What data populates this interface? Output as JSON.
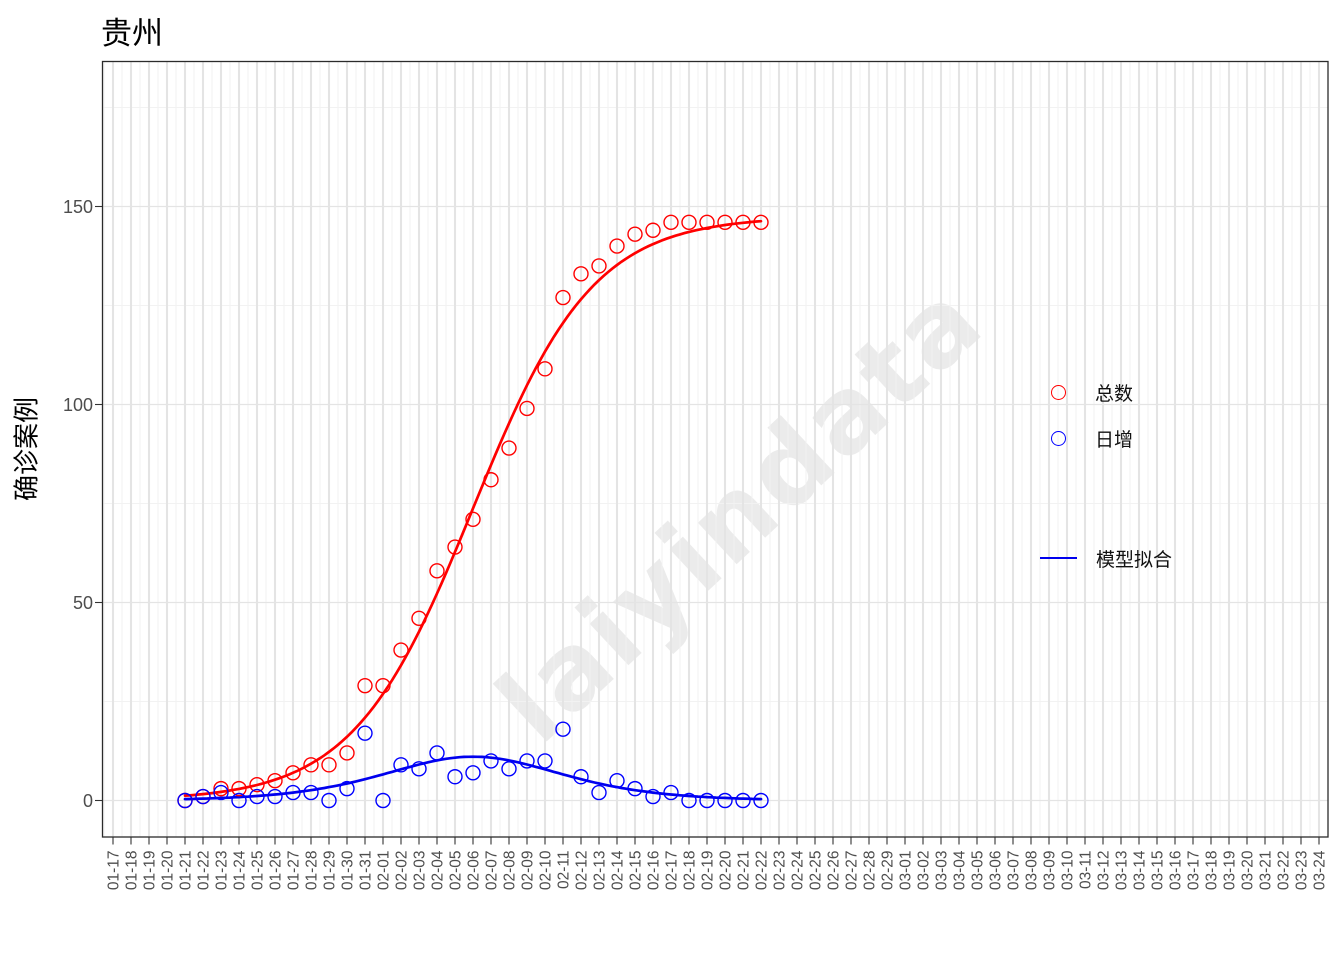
{
  "chart": {
    "title": "贵州",
    "y_axis_title": "确诊案例"
  },
  "watermark": {
    "text": "laiyindata"
  },
  "legend": {
    "total_label": "总数",
    "daily_label": "日增",
    "fit_label": "模型拟合"
  },
  "chart_data": {
    "type": "scatter",
    "title": "贵州",
    "xlabel": "",
    "ylabel": "确诊案例",
    "grid": "on",
    "legend_position": "inside-right",
    "y_ticks": [
      0,
      50,
      100,
      150
    ],
    "y_minor_ticks": [
      25,
      75,
      125,
      175
    ],
    "ylim": [
      -9,
      186
    ],
    "x_labels": [
      "01-17",
      "01-18",
      "01-19",
      "01-20",
      "01-21",
      "01-22",
      "01-23",
      "01-24",
      "01-25",
      "01-26",
      "01-27",
      "01-28",
      "01-29",
      "01-30",
      "01-31",
      "02-01",
      "02-02",
      "02-03",
      "02-04",
      "02-05",
      "02-06",
      "02-07",
      "02-08",
      "02-09",
      "02-10",
      "02-11",
      "02-12",
      "02-13",
      "02-14",
      "02-15",
      "02-16",
      "02-17",
      "02-18",
      "02-19",
      "02-20",
      "02-21",
      "02-22",
      "02-23",
      "02-24",
      "02-25",
      "02-26",
      "02-27",
      "02-28",
      "02-29",
      "03-01",
      "03-02",
      "03-03",
      "03-04",
      "03-05",
      "03-06",
      "03-07",
      "03-08",
      "03-09",
      "03-10",
      "03-11",
      "03-12",
      "03-13",
      "03-14",
      "03-15",
      "03-16",
      "03-17",
      "03-18",
      "03-19",
      "03-20",
      "03-21",
      "03-22",
      "03-23",
      "03-24"
    ],
    "series": [
      {
        "name": "总数",
        "marker": "open-circle",
        "color": "#FF0000",
        "start_index": 4,
        "dates": [
          "01-21",
          "01-22",
          "01-23",
          "01-24",
          "01-25",
          "01-26",
          "01-27",
          "01-28",
          "01-29",
          "01-30",
          "01-31",
          "02-01",
          "02-02",
          "02-03",
          "02-04",
          "02-05",
          "02-06",
          "02-07",
          "02-08",
          "02-09",
          "02-10",
          "02-11",
          "02-12",
          "02-13",
          "02-14",
          "02-15",
          "02-16",
          "02-17",
          "02-18",
          "02-19",
          "02-20",
          "02-21",
          "02-22"
        ],
        "values": [
          0,
          1,
          3,
          3,
          4,
          5,
          7,
          9,
          9,
          12,
          29,
          29,
          38,
          46,
          58,
          64,
          71,
          81,
          89,
          99,
          109,
          127,
          133,
          135,
          140,
          143,
          144,
          146,
          146,
          146,
          146,
          146,
          146
        ]
      },
      {
        "name": "日增",
        "marker": "open-circle",
        "color": "#0000FF",
        "start_index": 4,
        "dates": [
          "01-21",
          "01-22",
          "01-23",
          "01-24",
          "01-25",
          "01-26",
          "01-27",
          "01-28",
          "01-29",
          "01-30",
          "01-31",
          "02-01",
          "02-02",
          "02-03",
          "02-04",
          "02-05",
          "02-06",
          "02-07",
          "02-08",
          "02-09",
          "02-10",
          "02-11",
          "02-12",
          "02-13",
          "02-14",
          "02-15",
          "02-16",
          "02-17",
          "02-18",
          "02-19",
          "02-20",
          "02-21",
          "02-22"
        ],
        "values": [
          0,
          1,
          2,
          0,
          1,
          1,
          2,
          2,
          0,
          3,
          17,
          0,
          9,
          8,
          12,
          6,
          7,
          10,
          8,
          10,
          10,
          18,
          6,
          2,
          5,
          3,
          1,
          2,
          0,
          0,
          0,
          0,
          0
        ]
      }
    ],
    "fits": [
      {
        "name": "模型拟合",
        "applies_to": "总数",
        "color": "#FF0000",
        "model": "logistic",
        "L": 147.5,
        "k": 0.3,
        "t0_index": 20.0,
        "from_index": 4,
        "to_index": 36
      },
      {
        "name": "模型拟合",
        "applies_to": "日增",
        "color": "#0000EE",
        "model": "logistic_derivative",
        "L": 147.5,
        "k": 0.3,
        "t0_index": 20.0,
        "from_index": 4,
        "to_index": 36
      }
    ]
  }
}
